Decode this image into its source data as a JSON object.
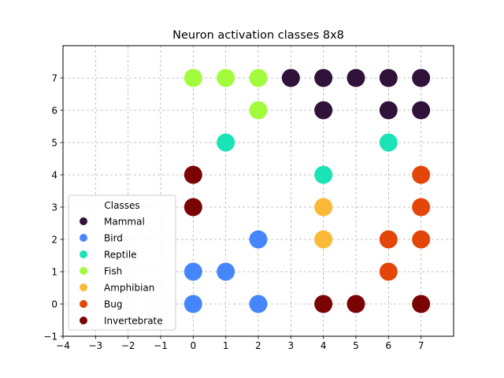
{
  "chart_data": {
    "type": "scatter",
    "title": "Neuron activation classes 8x8",
    "xlabel": "",
    "ylabel": "",
    "xlim": [
      -4,
      8
    ],
    "ylim": [
      -1,
      8
    ],
    "xticks": [
      -4,
      -3,
      -2,
      -1,
      0,
      1,
      2,
      3,
      4,
      5,
      6,
      7
    ],
    "yticks": [
      -1,
      0,
      1,
      2,
      3,
      4,
      5,
      6,
      7
    ],
    "grid": true,
    "grid_style": "dashed",
    "legend": {
      "title": "Classes",
      "placement": "lower-left"
    },
    "series": [
      {
        "name": "Mammal",
        "color": "#30123b",
        "points": [
          [
            3,
            7
          ],
          [
            4,
            7
          ],
          [
            5,
            7
          ],
          [
            6,
            7
          ],
          [
            7,
            7
          ],
          [
            4,
            6
          ],
          [
            6,
            6
          ],
          [
            7,
            6
          ]
        ]
      },
      {
        "name": "Bird",
        "color": "#4686fb",
        "points": [
          [
            2,
            2
          ],
          [
            0,
            1
          ],
          [
            1,
            1
          ],
          [
            0,
            0
          ],
          [
            2,
            0
          ]
        ]
      },
      {
        "name": "Reptile",
        "color": "#1ae4b6",
        "points": [
          [
            1,
            5
          ],
          [
            6,
            5
          ],
          [
            4,
            4
          ]
        ]
      },
      {
        "name": "Fish",
        "color": "#a2fc3c",
        "points": [
          [
            0,
            7
          ],
          [
            1,
            7
          ],
          [
            2,
            7
          ],
          [
            2,
            6
          ]
        ]
      },
      {
        "name": "Amphibian",
        "color": "#fbb938",
        "points": [
          [
            4,
            3
          ],
          [
            4,
            2
          ]
        ]
      },
      {
        "name": "Bug",
        "color": "#e4460a",
        "points": [
          [
            7,
            4
          ],
          [
            7,
            3
          ],
          [
            6,
            2
          ],
          [
            7,
            2
          ],
          [
            6,
            1
          ]
        ]
      },
      {
        "name": "Invertebrate",
        "color": "#7a0403",
        "points": [
          [
            0,
            4
          ],
          [
            0,
            3
          ],
          [
            4,
            0
          ],
          [
            5,
            0
          ],
          [
            7,
            0
          ]
        ]
      }
    ]
  }
}
